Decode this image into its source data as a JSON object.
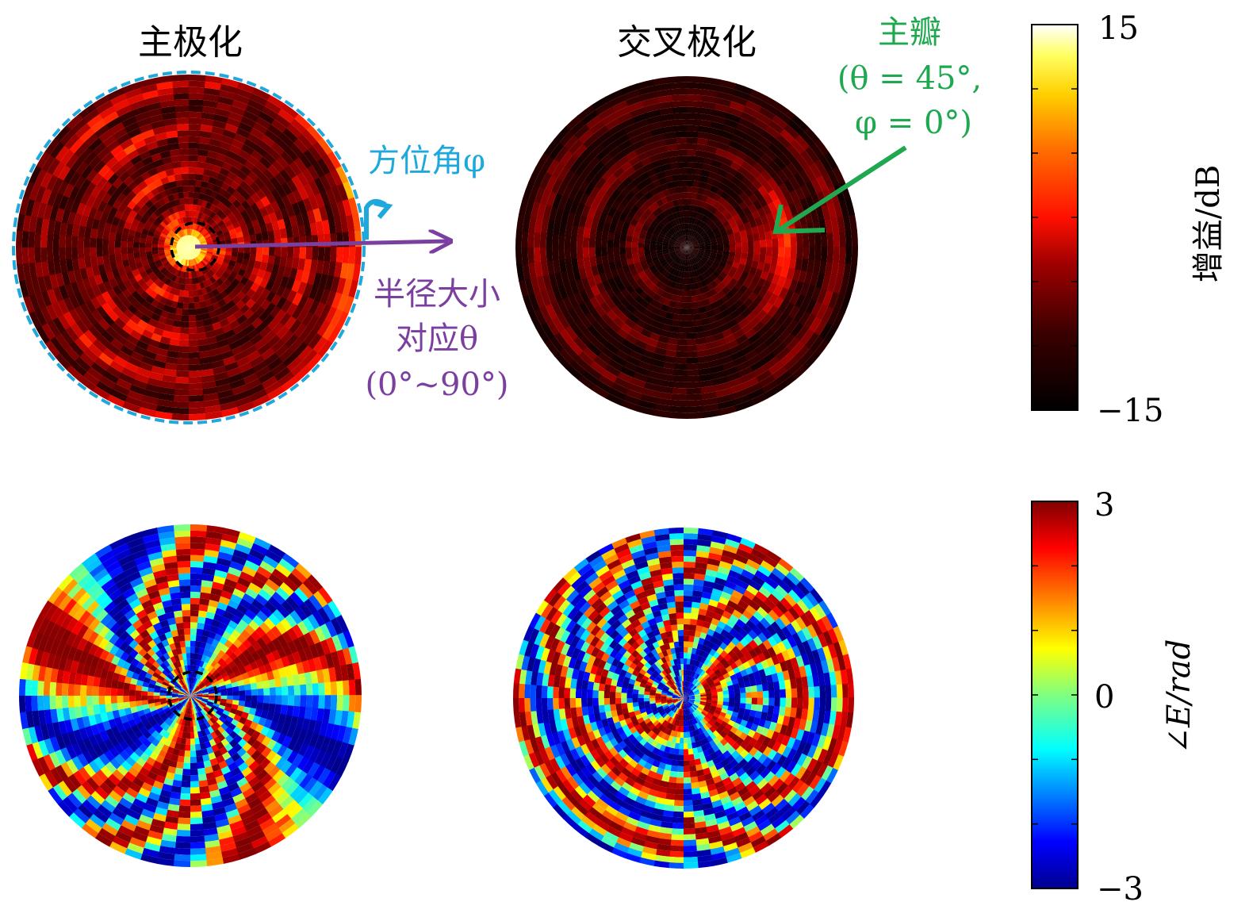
{
  "titles": {
    "co_polarization": "主极化",
    "cross_polarization": "交叉极化"
  },
  "annotations": {
    "azimuth": "方位角φ",
    "radius_line1": "半径大小",
    "radius_line2": "对应θ",
    "radius_line3": "(0°∼90°)",
    "main_lobe_title": "主瓣",
    "main_lobe_line1": "(θ = 45°,",
    "main_lobe_line2": "φ = 0°)"
  },
  "colors": {
    "azimuth_annotation": "#1fa8dc",
    "radius_annotation": "#7b3fa0",
    "main_lobe_annotation": "#1fa84f",
    "center_marker": "#000000"
  },
  "chart_data": [
    {
      "type": "heatmap",
      "projection": "polar",
      "quantity": "gain",
      "polarization": "主极化",
      "radial_axis": "θ",
      "theta_range_deg": [
        0,
        90
      ],
      "angular_axis": "φ",
      "colormap": "hot",
      "main_lobe_direction": {
        "theta_deg": 0,
        "phi_deg": 0
      }
    },
    {
      "type": "heatmap",
      "projection": "polar",
      "quantity": "gain",
      "polarization": "交叉极化",
      "radial_axis": "θ",
      "theta_range_deg": [
        0,
        90
      ],
      "angular_axis": "φ",
      "colormap": "hot",
      "main_lobe_direction": {
        "theta_deg": 45,
        "phi_deg": 0
      }
    },
    {
      "type": "heatmap",
      "projection": "polar",
      "quantity": "phase",
      "polarization": "主极化",
      "radial_axis": "θ",
      "theta_range_deg": [
        0,
        90
      ],
      "angular_axis": "φ",
      "colormap": "jet"
    },
    {
      "type": "heatmap",
      "projection": "polar",
      "quantity": "phase",
      "polarization": "交叉极化",
      "radial_axis": "θ",
      "theta_range_deg": [
        0,
        90
      ],
      "angular_axis": "φ",
      "colormap": "jet"
    }
  ],
  "colorbars": {
    "gain": {
      "label": "增益/dB",
      "min": -15,
      "max": 15,
      "max_label": "15",
      "min_label": "−15",
      "colormap": "hot"
    },
    "phase": {
      "label": "∠E/rad",
      "min": -3,
      "max": 3,
      "max_label": "3",
      "mid_label": "0",
      "min_label": "−3",
      "colormap": "jet"
    }
  }
}
